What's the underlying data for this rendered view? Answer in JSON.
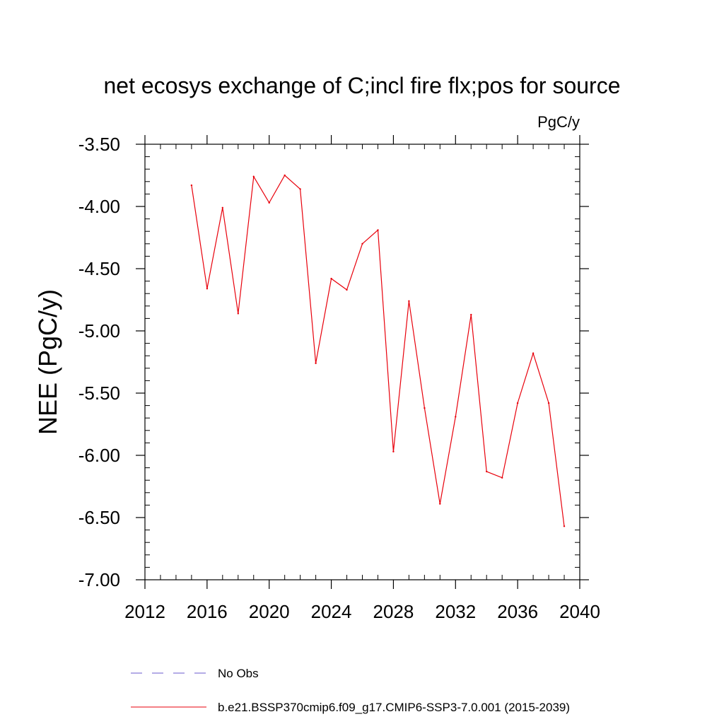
{
  "chart_data": {
    "type": "line",
    "title": "net ecosys exchange of C;incl fire flx;pos for source",
    "units": "PgC/y",
    "xlabel": "",
    "ylabel": "NEE  (PgC/y)",
    "xlim": [
      2012,
      2040
    ],
    "ylim": [
      -7.0,
      -3.5
    ],
    "xticks": [
      2012,
      2016,
      2020,
      2024,
      2028,
      2032,
      2036,
      2040
    ],
    "xtick_labels": [
      "2012",
      "2016",
      "2020",
      "2024",
      "2028",
      "2032",
      "2036",
      "2040"
    ],
    "yticks": [
      -3.5,
      -4.0,
      -4.5,
      -5.0,
      -5.5,
      -6.0,
      -6.5,
      -7.0
    ],
    "ytick_labels": [
      "-3.50",
      "-4.00",
      "-4.50",
      "-5.00",
      "-5.50",
      "-6.00",
      "-6.50",
      "-7.00"
    ],
    "grid": false,
    "legend_position": "bottom",
    "series": [
      {
        "name": "b.e21.BSSP370cmip6.f09_g17.CMIP6-SSP3-7.0.001 (2015-2039)",
        "color": "#e8000b",
        "style": "solid",
        "x": [
          2015,
          2016,
          2017,
          2018,
          2019,
          2020,
          2021,
          2022,
          2023,
          2024,
          2025,
          2026,
          2027,
          2028,
          2029,
          2030,
          2031,
          2032,
          2033,
          2034,
          2035,
          2036,
          2037,
          2038,
          2039
        ],
        "y": [
          -3.83,
          -4.66,
          -4.01,
          -4.86,
          -3.76,
          -3.97,
          -3.75,
          -3.86,
          -5.26,
          -4.58,
          -4.67,
          -4.3,
          -4.19,
          -5.97,
          -4.76,
          -5.62,
          -6.39,
          -5.69,
          -4.87,
          -6.13,
          -6.18,
          -5.58,
          -5.18,
          -5.58,
          -6.57
        ]
      }
    ],
    "legend": [
      {
        "label": "No Obs",
        "color": "#6a5acd",
        "style": "dashed"
      },
      {
        "label": "b.e21.BSSP370cmip6.f09_g17.CMIP6-SSP3-7.0.001 (2015-2039)",
        "color": "#e8000b",
        "style": "solid"
      }
    ]
  }
}
